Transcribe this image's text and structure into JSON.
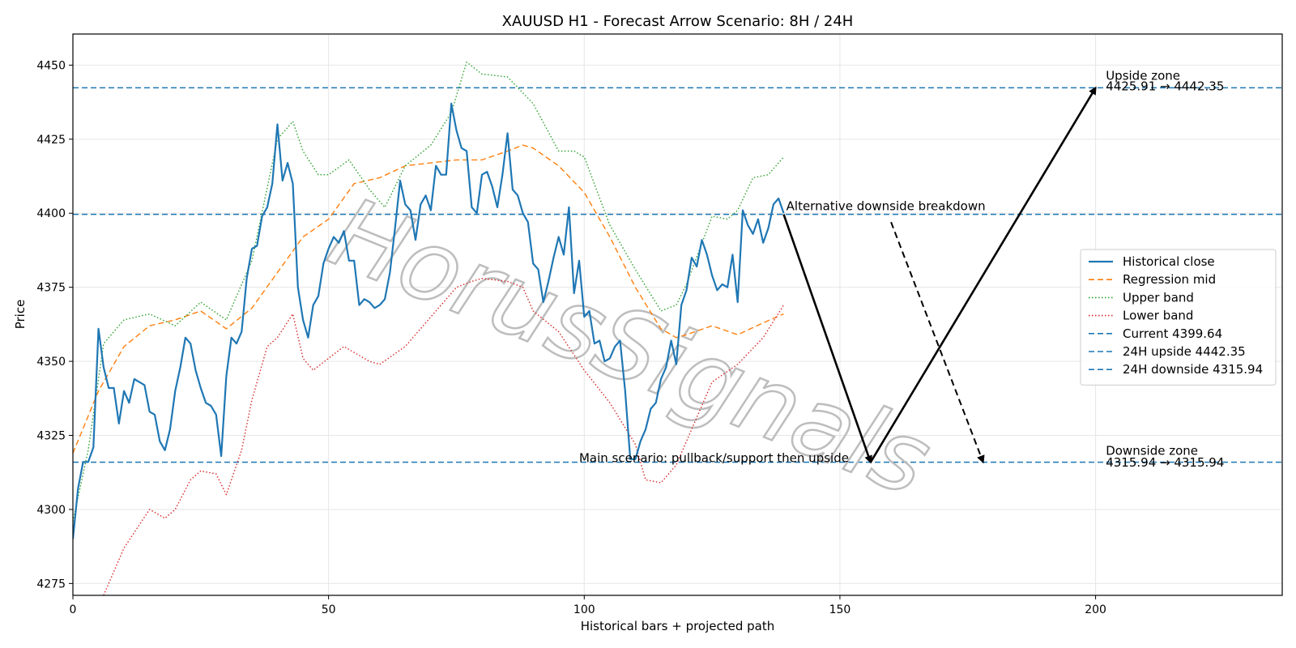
{
  "chart_data": {
    "type": "line",
    "title": "XAUUSD H1 - Forecast Arrow Scenario: 8H / 24H",
    "xlabel": "Historical bars + projected path",
    "ylabel": "Price",
    "xlim": [
      0,
      236.5
    ],
    "ylim": [
      4271,
      4460.5
    ],
    "xticks": [
      0,
      50,
      100,
      150,
      200
    ],
    "yticks": [
      4275,
      4300,
      4325,
      4350,
      4375,
      4400,
      4425,
      4450
    ],
    "grid": true,
    "legend_position": "center-right",
    "watermark": "HorusSignals",
    "series": [
      {
        "name": "Historical close",
        "style": "solid",
        "color": "#1f77b4",
        "x": [
          0,
          1,
          2,
          3,
          4,
          5,
          6,
          7,
          8,
          9,
          10,
          11,
          12,
          13,
          14,
          15,
          16,
          17,
          18,
          19,
          20,
          21,
          22,
          23,
          24,
          25,
          26,
          27,
          28,
          29,
          30,
          31,
          32,
          33,
          34,
          35,
          36,
          37,
          38,
          39,
          40,
          41,
          42,
          43,
          44,
          45,
          46,
          47,
          48,
          49,
          50,
          51,
          52,
          53,
          54,
          55,
          56,
          57,
          58,
          59,
          60,
          61,
          62,
          63,
          64,
          65,
          66,
          67,
          68,
          69,
          70,
          71,
          72,
          73,
          74,
          75,
          76,
          77,
          78,
          79,
          80,
          81,
          82,
          83,
          84,
          85,
          86,
          87,
          88,
          89,
          90,
          91,
          92,
          93,
          94,
          95,
          96,
          97,
          98,
          99,
          100,
          101,
          102,
          103,
          104,
          105,
          106,
          107,
          108,
          109,
          110,
          111,
          112,
          113,
          114,
          115,
          116,
          117,
          118,
          119,
          120,
          121,
          122,
          123,
          124,
          125,
          126,
          127,
          128,
          129,
          130,
          131,
          132,
          133,
          134,
          135,
          136,
          137,
          138,
          139
        ],
        "values": [
          4290,
          4307,
          4316,
          4316,
          4321,
          4361,
          4348,
          4341,
          4341,
          4329,
          4340,
          4336,
          4344,
          4343,
          4342,
          4333,
          4332,
          4323,
          4320,
          4327,
          4340,
          4348,
          4358,
          4356,
          4347,
          4341,
          4336,
          4335,
          4332,
          4318,
          4345,
          4358,
          4356,
          4360,
          4378,
          4388,
          4389,
          4399,
          4402,
          4410,
          4430,
          4411,
          4417,
          4410,
          4375,
          4364,
          4358,
          4369,
          4372,
          4383,
          4388,
          4392,
          4390,
          4394,
          4384,
          4384,
          4369,
          4371,
          4370,
          4368,
          4369,
          4371,
          4380,
          4395,
          4411,
          4403,
          4401,
          4391,
          4403,
          4406,
          4401,
          4416,
          4413,
          4413,
          4437,
          4428,
          4422,
          4421,
          4402,
          4400,
          4413,
          4414,
          4409,
          4402,
          4413,
          4427,
          4408,
          4406,
          4400,
          4397,
          4383,
          4381,
          4370,
          4377,
          4385,
          4392,
          4386,
          4402,
          4373,
          4384,
          4365,
          4367,
          4356,
          4357,
          4350,
          4351,
          4355,
          4357,
          4340,
          4317,
          4317,
          4323,
          4327,
          4334,
          4336,
          4344,
          4348,
          4357,
          4349,
          4369,
          4374,
          4385,
          4382,
          4391,
          4386,
          4379,
          4374,
          4376,
          4375,
          4386,
          4370,
          4401,
          4396,
          4393,
          4398,
          4390,
          4395,
          4403,
          4405,
          4400
        ]
      },
      {
        "name": "Regression mid",
        "style": "dashed",
        "color": "#ff7f0e",
        "x": [
          0,
          5,
          10,
          15,
          20,
          25,
          30,
          35,
          40,
          45,
          50,
          55,
          60,
          65,
          70,
          75,
          80,
          85,
          88,
          90,
          95,
          100,
          105,
          110,
          115,
          118,
          120,
          125,
          130,
          135,
          139
        ],
        "values": [
          4319,
          4340,
          4355,
          4362,
          4364,
          4367,
          4361,
          4368,
          4380,
          4392,
          4398,
          4410,
          4412,
          4416,
          4417,
          4418,
          4418,
          4421,
          4423,
          4422,
          4416,
          4407,
          4392,
          4375,
          4361,
          4358,
          4359,
          4362,
          4359,
          4363,
          4366
        ]
      },
      {
        "name": "Upper band",
        "style": "dotted",
        "color": "#2ca02c",
        "x": [
          0,
          3,
          6,
          10,
          15,
          20,
          25,
          30,
          35,
          40,
          43,
          45,
          48,
          50,
          54,
          58,
          61,
          65,
          70,
          74,
          77,
          80,
          85,
          90,
          95,
          98,
          100,
          105,
          110,
          115,
          118,
          120,
          125,
          128,
          130,
          133,
          136,
          139
        ],
        "values": [
          4296,
          4320,
          4356,
          4364,
          4366,
          4362,
          4370,
          4364,
          4384,
          4425,
          4431,
          4421,
          4413,
          4413,
          4418,
          4408,
          4402,
          4416,
          4423,
          4434,
          4451,
          4447,
          4446,
          4437,
          4421,
          4421,
          4419,
          4396,
          4381,
          4367,
          4369,
          4376,
          4399,
          4398,
          4401,
          4412,
          4413,
          4419
        ]
      },
      {
        "name": "Lower band",
        "style": "dotted",
        "color": "#d62728",
        "x": [
          6,
          10,
          15,
          18,
          20,
          23,
          25,
          28,
          30,
          33,
          35,
          38,
          40,
          43,
          45,
          47,
          50,
          53,
          55,
          58,
          60,
          65,
          70,
          75,
          78,
          80,
          85,
          88,
          90,
          95,
          100,
          105,
          110,
          112,
          115,
          118,
          120,
          125,
          130,
          135,
          139
        ],
        "values": [
          4271,
          4287,
          4300,
          4297,
          4300,
          4310,
          4313,
          4312,
          4305,
          4320,
          4337,
          4355,
          4358,
          4366,
          4351,
          4347,
          4351,
          4355,
          4353,
          4350,
          4349,
          4355,
          4365,
          4375,
          4377,
          4378,
          4377,
          4375,
          4367,
          4360,
          4347,
          4336,
          4322,
          4310,
          4309,
          4315,
          4323,
          4343,
          4349,
          4358,
          4369
        ]
      }
    ],
    "reference_lines": [
      {
        "name": "Current 4399.64",
        "y": 4399.64,
        "style": "dashed",
        "color": "#1f77b4"
      },
      {
        "name": "24H upside 4442.35",
        "y": 4442.35,
        "style": "dashed",
        "color": "#1f77b4"
      },
      {
        "name": "24H downside 4315.94",
        "y": 4315.94,
        "style": "dashed",
        "color": "#1f77b4"
      }
    ],
    "arrows": [
      {
        "from": [
          139,
          4399.64
        ],
        "to": [
          156,
          4315.94
        ],
        "style": "solid"
      },
      {
        "from": [
          156,
          4315.94
        ],
        "to": [
          200,
          4442.35
        ],
        "style": "solid"
      },
      {
        "from": [
          160,
          4397
        ],
        "to": [
          178,
          4316
        ],
        "style": "dashed"
      }
    ],
    "annotations": [
      {
        "text": "Alternative downside breakdown",
        "x": 139.5,
        "y": 4401
      },
      {
        "text": "Main scenario: pullback/support then upside",
        "x": 99,
        "y": 4316
      },
      {
        "text": "Upside zone",
        "x": 202,
        "y": 4445
      },
      {
        "text": "4425.91 → 4442.35",
        "x": 202,
        "y": 4441.5
      },
      {
        "text": "Downside zone",
        "x": 202,
        "y": 4318.5
      },
      {
        "text": "4315.94 → 4315.94",
        "x": 202,
        "y": 4314.5
      }
    ]
  }
}
